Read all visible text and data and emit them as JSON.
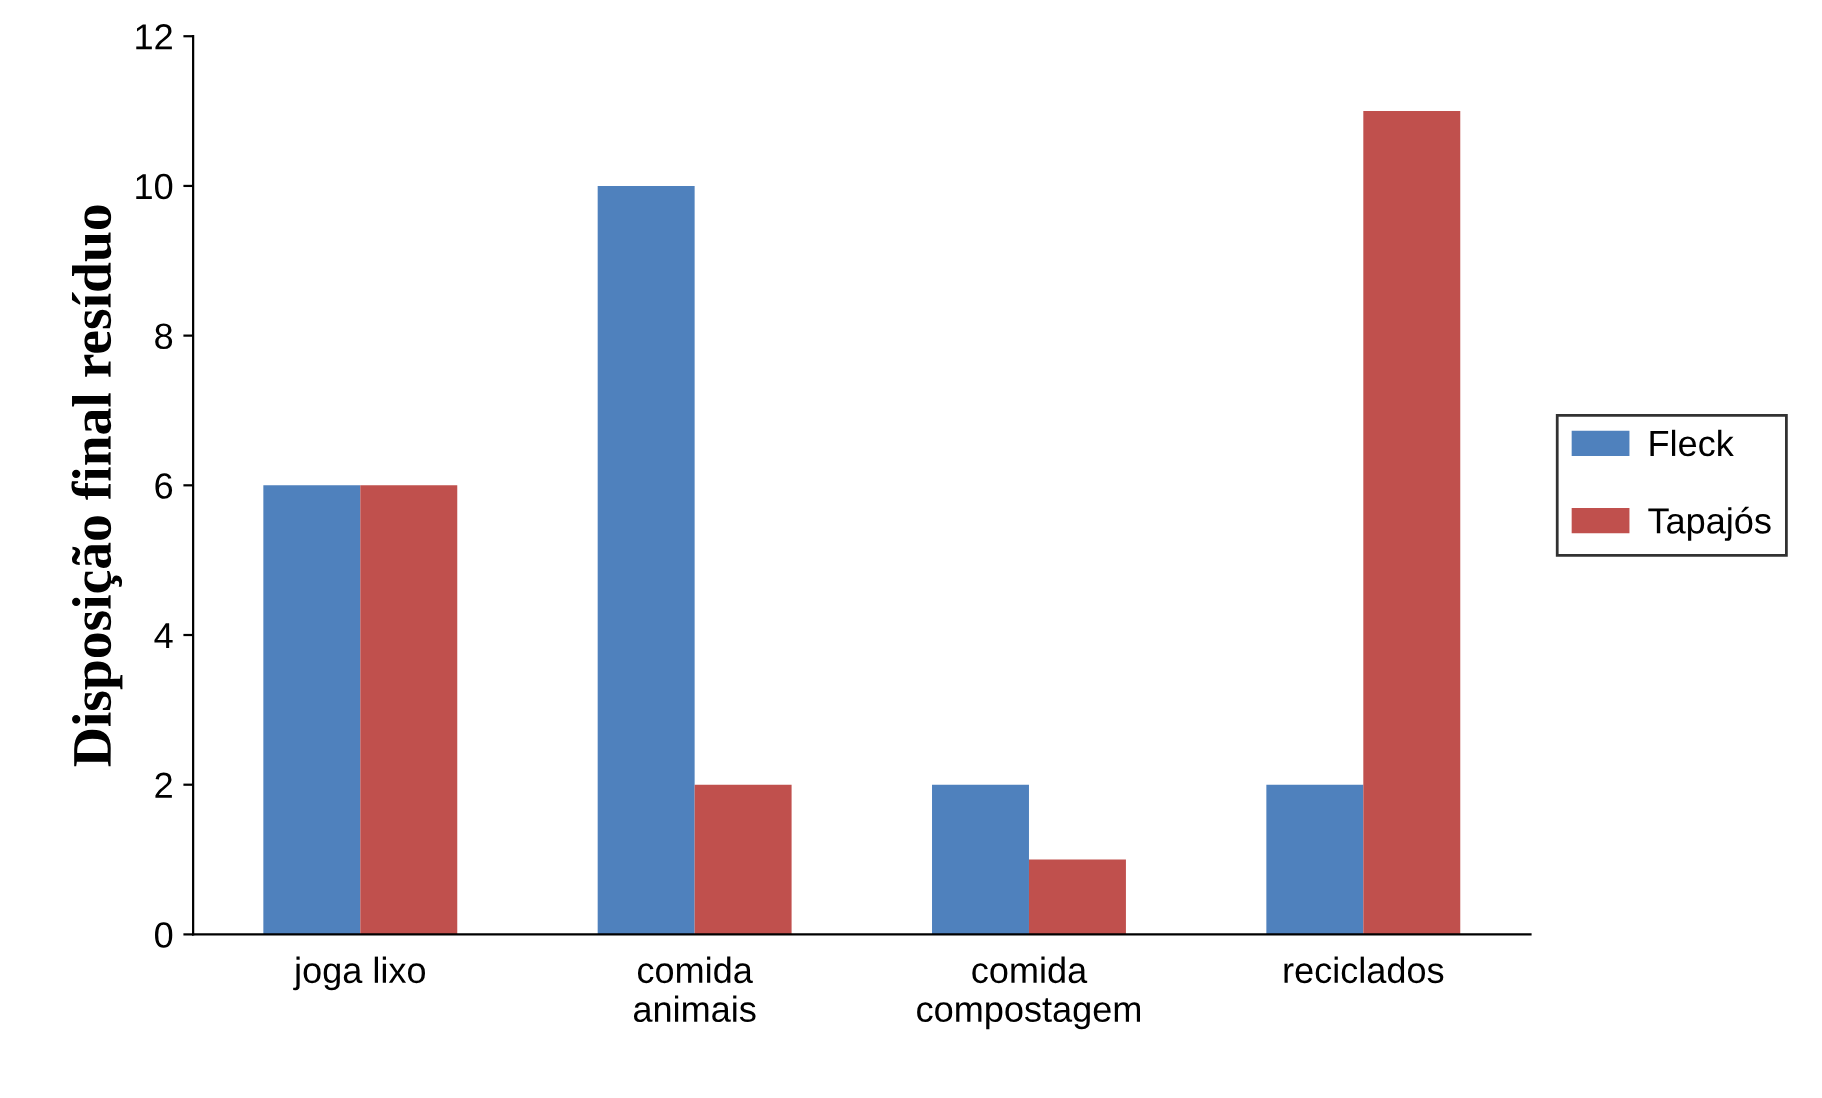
{
  "chart_data": {
    "type": "bar",
    "ylabel": "Disposição final resíduo",
    "categories": [
      "joga lixo",
      "comida\nanimais",
      "comida\ncompostagem",
      "reciclados"
    ],
    "series": [
      {
        "name": "Fleck",
        "color": "#4f81bd",
        "values": [
          6,
          10,
          2,
          2
        ]
      },
      {
        "name": "Tapajós",
        "color": "#c0504d",
        "values": [
          6,
          2,
          1,
          11
        ]
      }
    ],
    "ylim": [
      0,
      12
    ],
    "yticks": [
      0,
      2,
      4,
      6,
      8,
      10,
      12
    ],
    "grid": false,
    "legend": "right"
  }
}
